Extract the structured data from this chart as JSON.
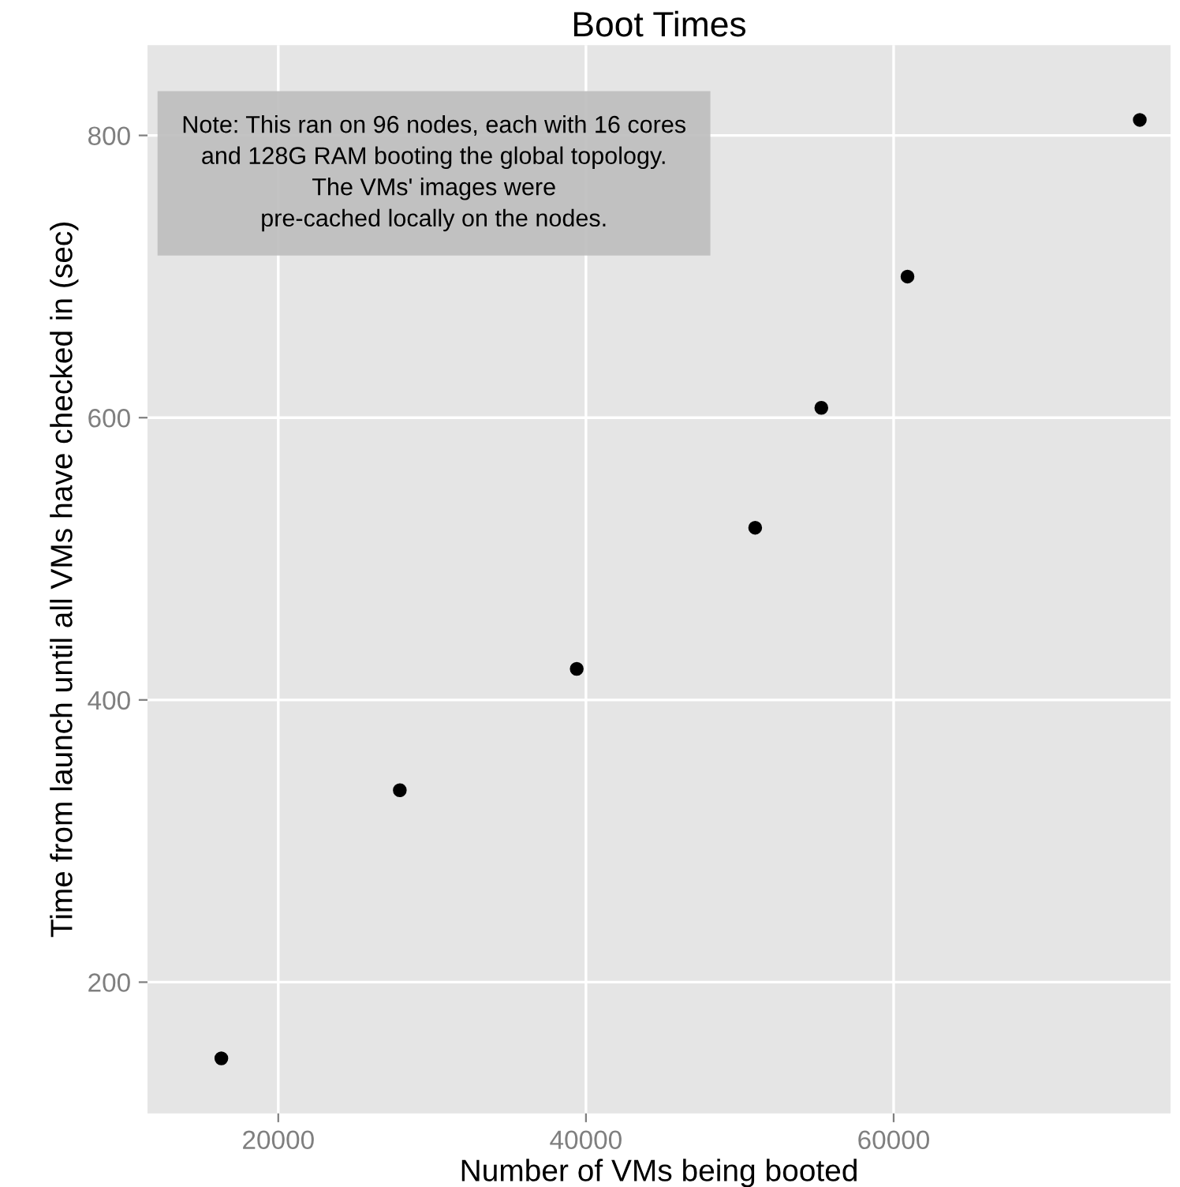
{
  "chart_data": {
    "type": "scatter",
    "title": "Boot Times",
    "xlabel": "Number of VMs being booted",
    "ylabel": "Time from launch until all VMs have checked in (sec)",
    "x": [
      16300,
      27900,
      39400,
      51000,
      55300,
      60900,
      76000
    ],
    "values": [
      146,
      336,
      422,
      522,
      607,
      700,
      811
    ],
    "color": "#000000",
    "marker": "circle",
    "xlim": [
      11500,
      78000
    ],
    "ylim": [
      107,
      864
    ],
    "xticks": [
      20000,
      40000,
      60000
    ],
    "yticks": [
      200,
      400,
      600,
      800
    ],
    "grid": true,
    "annotations": [
      "Note: This ran on 96 nodes, each with 16 cores\nand 128G RAM booting the global topology.\nThe VMs' images were\npre-cached locally on the nodes."
    ]
  }
}
